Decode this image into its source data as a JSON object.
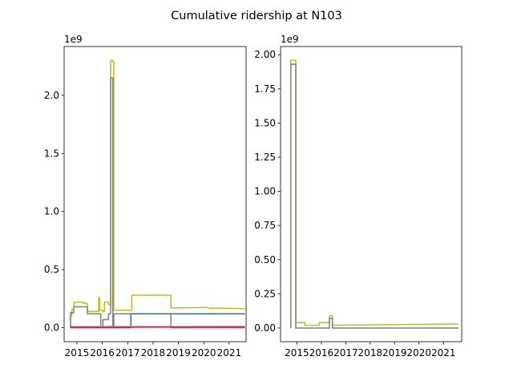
{
  "figure": {
    "title": "Cumulative ridership at N103"
  },
  "chart_data": [
    {
      "type": "line",
      "panel": "left",
      "offset_text": "1e9",
      "xlim": [
        "2014-07-01",
        "2021-09-01"
      ],
      "ylim": [
        -0.12,
        2.42
      ],
      "x_ticks": [
        "2015",
        "2016",
        "2017",
        "2018",
        "2019",
        "2020",
        "2021"
      ],
      "y_ticks": [
        0.0,
        0.5,
        1.0,
        1.5,
        2.0
      ],
      "y_tick_labels": [
        "0.0",
        "0.5",
        "1.0",
        "1.5",
        "2.0"
      ],
      "grid": false,
      "series": [
        {
          "color": "#bcbd22",
          "x": [
            "2014-10-01",
            "2014-10-01",
            "2014-10-20",
            "2014-10-20",
            "2014-11-20",
            "2014-11-20",
            "2015-04-01",
            "2015-04-01",
            "2015-06-01",
            "2015-06-01",
            "2015-11-10",
            "2015-11-10",
            "2015-11-25",
            "2015-11-25",
            "2016-01-15",
            "2016-01-15",
            "2016-02-01",
            "2016-02-01",
            "2016-04-01",
            "2016-04-01",
            "2016-05-01",
            "2016-05-01",
            "2016-06-01",
            "2016-06-01",
            "2016-06-15",
            "2016-06-15",
            "2016-07-15",
            "2016-07-15",
            "2017-03-01",
            "2017-03-01",
            "2018-09-15",
            "2018-09-15",
            "2020-02-01",
            "2020-05-01",
            "2020-05-01",
            "2021-08-15"
          ],
          "y": [
            0.0,
            0.1,
            0.1,
            0.16,
            0.16,
            0.22,
            0.22,
            0.21,
            0.21,
            0.14,
            0.14,
            0.26,
            0.26,
            0.15,
            0.15,
            0.14,
            0.14,
            0.22,
            0.22,
            0.2,
            0.2,
            2.3,
            2.3,
            2.29,
            2.29,
            0.15,
            0.15,
            0.15,
            0.15,
            0.28,
            0.28,
            0.17,
            0.175,
            0.165,
            0.17,
            0.165
          ]
        },
        {
          "color": "#7f7f7f",
          "x": [
            "2014-10-01",
            "2014-10-01",
            "2014-11-20",
            "2014-11-20",
            "2015-06-01",
            "2015-06-01",
            "2015-12-10",
            "2015-12-10",
            "2016-01-10",
            "2016-01-10",
            "2016-04-01",
            "2016-04-01",
            "2016-05-01",
            "2016-05-01",
            "2016-06-01",
            "2016-06-01",
            "2016-06-15",
            "2016-06-15",
            "2018-09-15",
            "2018-09-15",
            "2021-08-15"
          ],
          "y": [
            0.0,
            0.13,
            0.13,
            0.18,
            0.18,
            0.12,
            0.12,
            0.0,
            0.0,
            0.07,
            0.07,
            0.12,
            0.12,
            2.15,
            2.15,
            0.0,
            0.0,
            0.12,
            0.12,
            0.0,
            0.0
          ]
        },
        {
          "color": "#1f77b4",
          "x": [
            "2014-10-01",
            "2017-02-15",
            "2017-02-15",
            "2021-08-15"
          ],
          "y": [
            0.0,
            0.0,
            0.12,
            0.12
          ]
        },
        {
          "color": "#e377c2",
          "x": [
            "2014-10-01",
            "2021-08-15"
          ],
          "y": [
            0.01,
            0.012
          ]
        },
        {
          "color": "#d62728",
          "x": [
            "2014-10-01",
            "2021-08-15"
          ],
          "y": [
            0.004,
            0.006
          ]
        }
      ]
    },
    {
      "type": "line",
      "panel": "right",
      "offset_text": "1e9",
      "xlim": [
        "2014-05-01",
        "2021-10-01"
      ],
      "ylim": [
        -0.1,
        2.06
      ],
      "x_ticks": [
        "2015",
        "2016",
        "2017",
        "2018",
        "2019",
        "2020",
        "2021"
      ],
      "y_ticks": [
        0.0,
        0.25,
        0.5,
        0.75,
        1.0,
        1.25,
        1.5,
        1.75,
        2.0
      ],
      "y_tick_labels": [
        "0.00",
        "0.25",
        "0.50",
        "0.75",
        "1.00",
        "1.25",
        "1.50",
        "1.75",
        "2.00"
      ],
      "grid": false,
      "series": [
        {
          "color": "#bcbd22",
          "x": [
            "2014-10-01",
            "2014-10-01",
            "2014-12-15",
            "2014-12-15",
            "2015-05-01",
            "2015-05-01",
            "2015-12-01",
            "2015-12-01",
            "2016-05-01",
            "2016-05-01",
            "2016-06-15",
            "2016-06-15",
            "2016-08-01",
            "2016-08-01",
            "2021-08-15"
          ],
          "y": [
            0.0,
            1.96,
            1.96,
            0.04,
            0.04,
            0.02,
            0.02,
            0.04,
            0.04,
            0.09,
            0.09,
            0.02,
            0.02,
            0.02,
            0.03
          ]
        },
        {
          "color": "#7f7f7f",
          "x": [
            "2014-10-01",
            "2014-10-01",
            "2014-12-15",
            "2014-12-15",
            "2016-05-01",
            "2016-05-01",
            "2016-06-15",
            "2016-06-15",
            "2021-08-15"
          ],
          "y": [
            0.0,
            1.93,
            1.93,
            0.0,
            0.0,
            0.07,
            0.07,
            0.0,
            0.0
          ]
        }
      ]
    }
  ]
}
